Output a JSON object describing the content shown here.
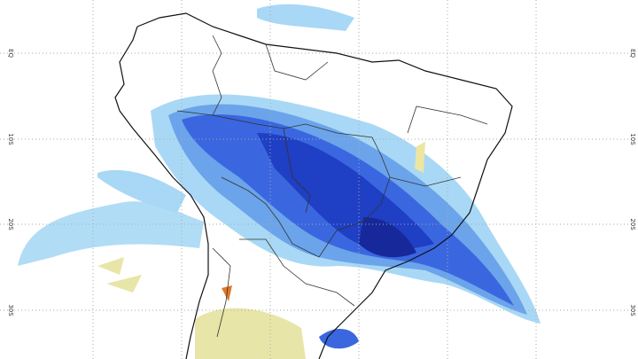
{
  "map": {
    "lat_labels_left": [
      "EQ",
      "10S",
      "20S",
      "30S"
    ],
    "lat_labels_right": [
      "EQ",
      "10S",
      "20S",
      "30S"
    ]
  }
}
